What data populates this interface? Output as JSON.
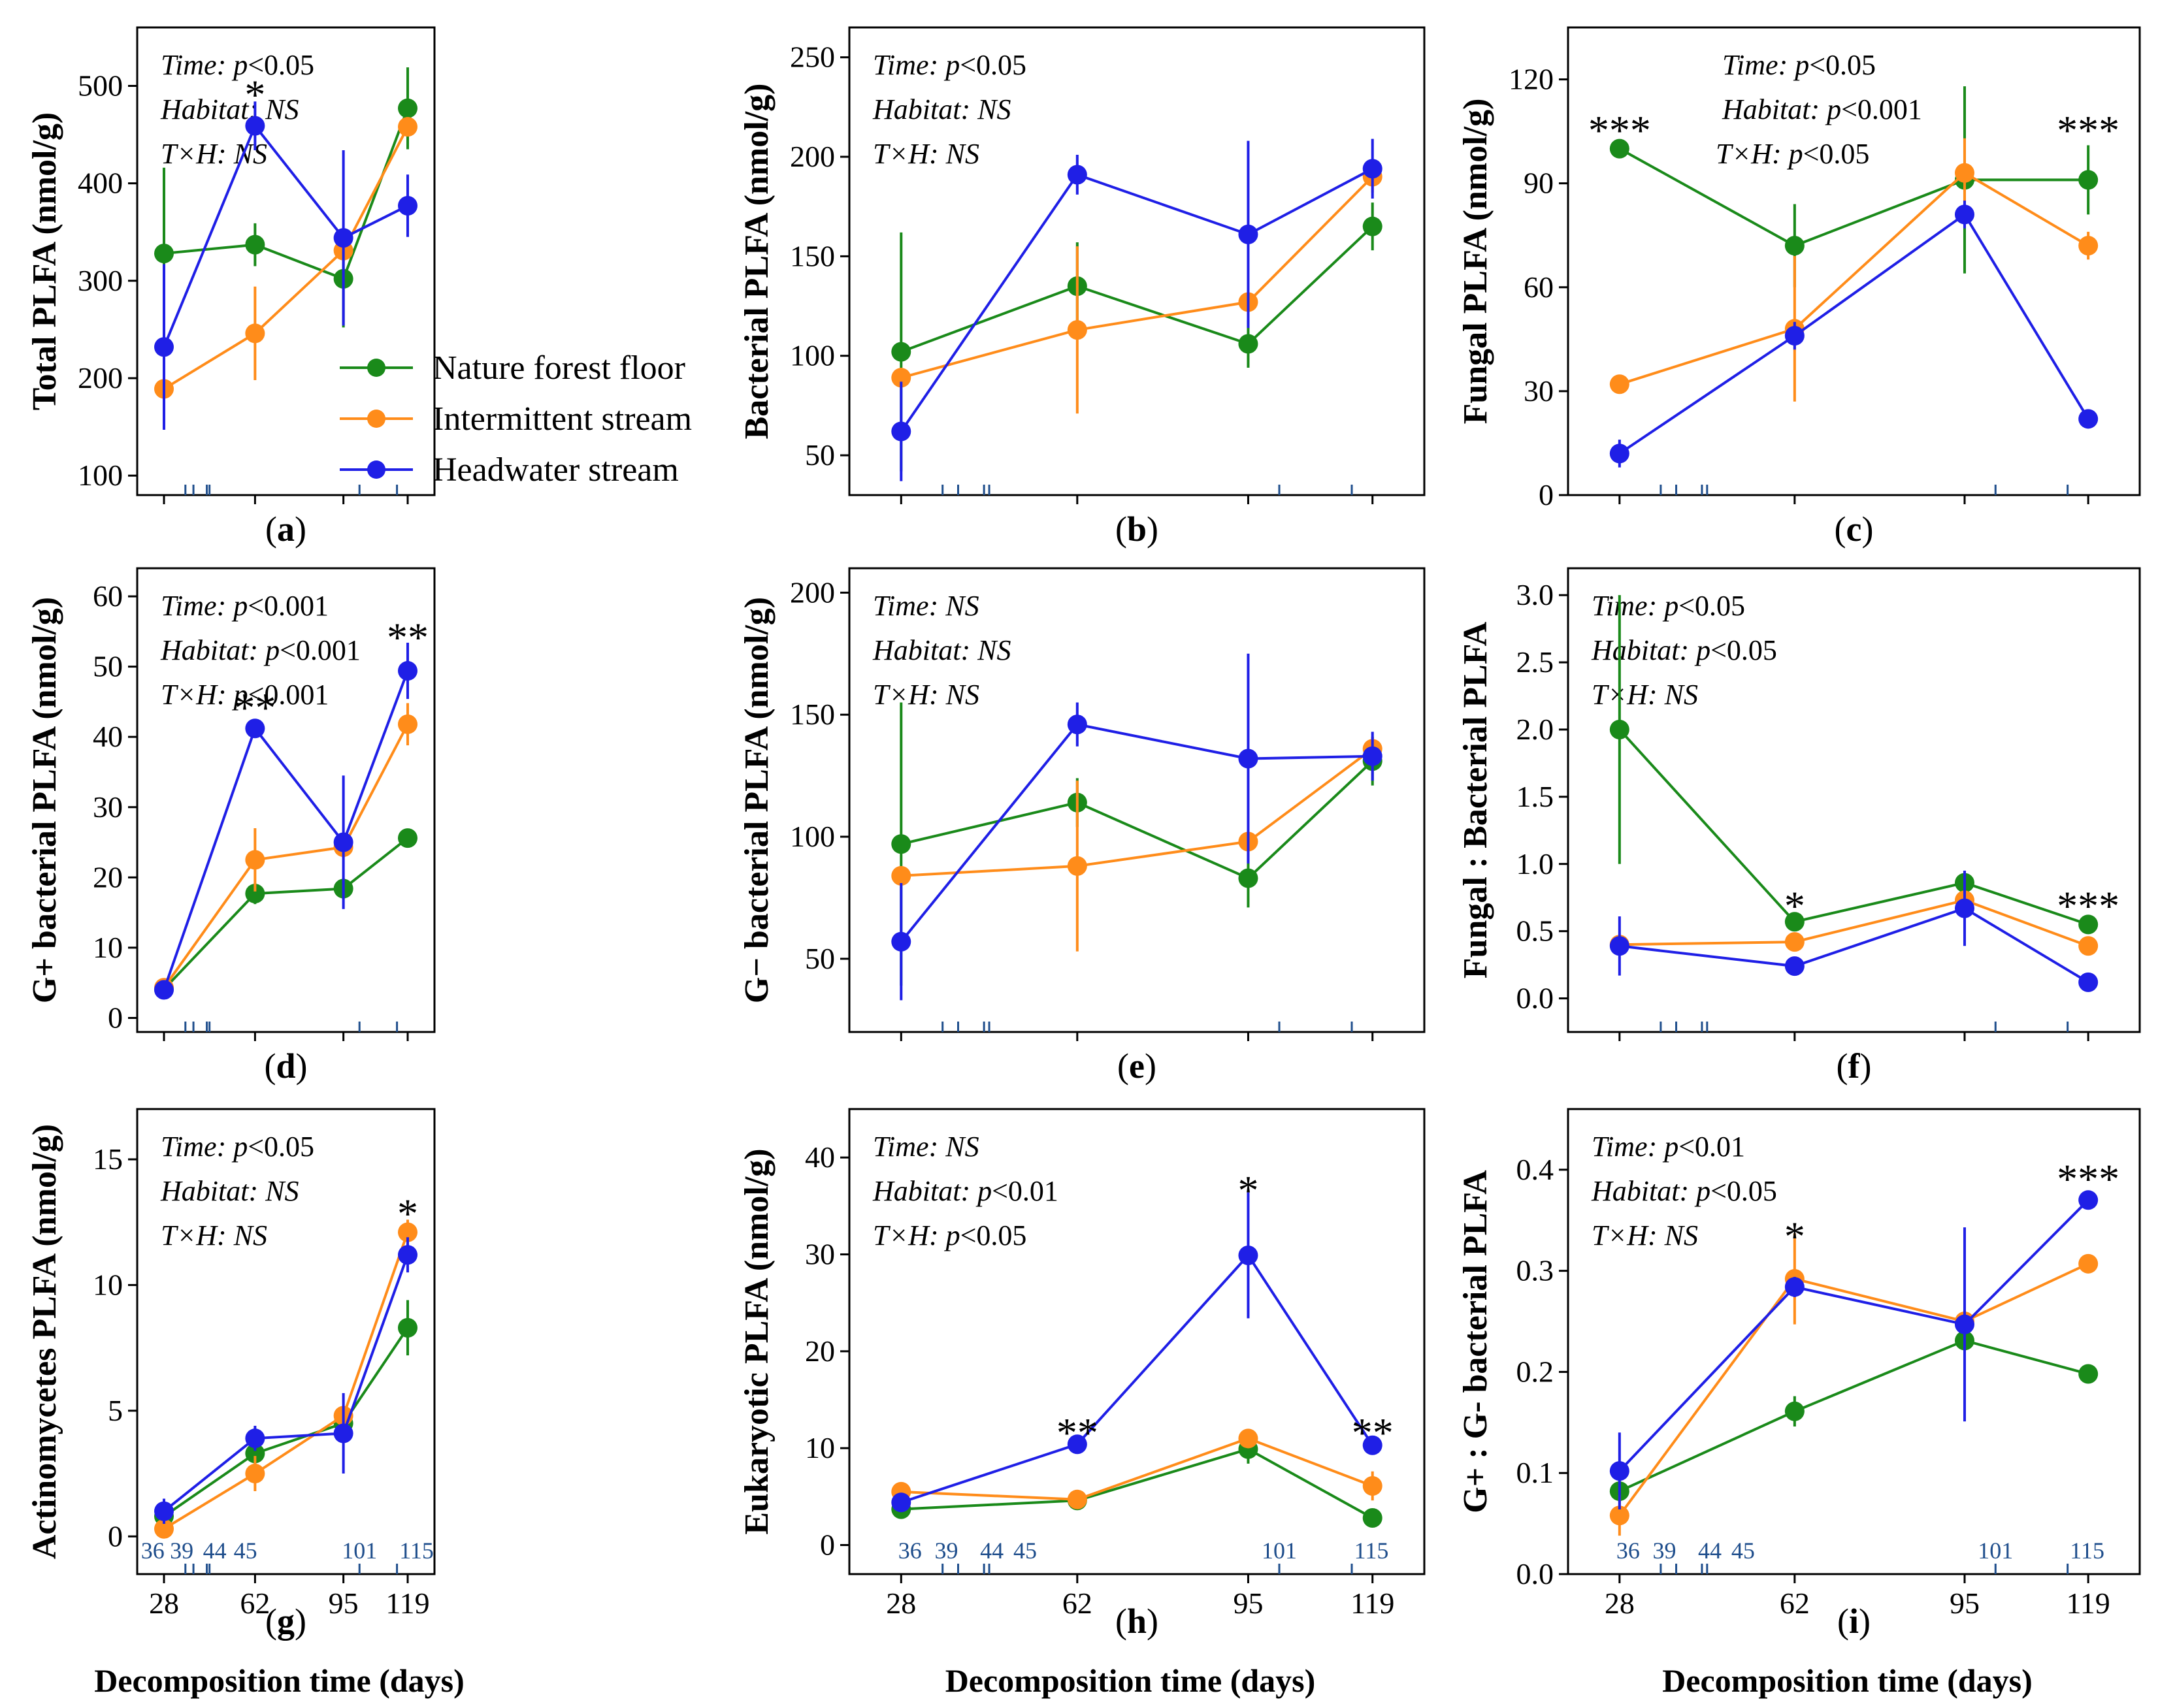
{
  "colors": {
    "Nature forest floor": "#1a8a1a",
    "Intermittent stream": "#ff8c1a",
    "Headwater stream": "#1f1fe6",
    "rug": "#1f4e8c"
  },
  "legend": [
    "Nature forest floor",
    "Intermittent stream",
    "Headwater stream"
  ],
  "common_xlabel": "Decomposition time (days)",
  "rug_days": [
    36,
    39,
    44,
    45,
    101,
    115
  ],
  "chart_data": [
    {
      "type": "line",
      "panel": "a",
      "ylabel": "Total PLFA (nmol/g)",
      "x": [
        28,
        62,
        95,
        119
      ],
      "ylim": [
        80,
        560
      ],
      "yticks": [
        100,
        200,
        300,
        400,
        500
      ],
      "stats": [
        {
          "key": "Time",
          "value": "p<0.05"
        },
        {
          "key": "Habitat",
          "value": "NS"
        },
        {
          "key": "T×H",
          "value": "NS"
        }
      ],
      "series": [
        {
          "name": "Nature forest floor",
          "values": [
            328,
            337,
            302,
            477
          ],
          "err": [
            88,
            22,
            50,
            42
          ]
        },
        {
          "name": "Intermittent stream",
          "values": [
            189,
            246,
            331,
            458
          ],
          "err": [
            12,
            48,
            12,
            10
          ]
        },
        {
          "name": "Headwater stream",
          "values": [
            232,
            459,
            344,
            377
          ],
          "err": [
            85,
            25,
            90,
            32
          ]
        }
      ],
      "sig": [
        {
          "x": 62,
          "text": "*",
          "value": 490
        }
      ],
      "show_xticks": false,
      "show_legend": true
    },
    {
      "type": "line",
      "panel": "b",
      "ylabel": "Bacterial PLFA (nmol/g)",
      "x": [
        28,
        62,
        95,
        119
      ],
      "ylim": [
        30,
        265
      ],
      "yticks": [
        50,
        100,
        150,
        200,
        250
      ],
      "stats": [
        {
          "key": "Time",
          "value": "p<0.05"
        },
        {
          "key": "Habitat",
          "value": "NS"
        },
        {
          "key": "T×H",
          "value": "NS"
        }
      ],
      "series": [
        {
          "name": "Nature forest floor",
          "values": [
            102,
            135,
            106,
            165
          ],
          "err": [
            60,
            22,
            12,
            12
          ]
        },
        {
          "name": "Intermittent stream",
          "values": [
            89,
            113,
            127,
            190
          ],
          "err": [
            5,
            42,
            5,
            8
          ]
        },
        {
          "name": "Headwater stream",
          "values": [
            62,
            191,
            161,
            194
          ],
          "err": [
            25,
            10,
            47,
            15
          ]
        }
      ],
      "sig": [],
      "show_xticks": false,
      "show_legend": false
    },
    {
      "type": "line",
      "panel": "c",
      "ylabel": "Fungal PLFA (nmol/g)",
      "x": [
        28,
        62,
        95,
        119
      ],
      "ylim": [
        0,
        135
      ],
      "yticks": [
        0,
        30,
        60,
        90,
        120
      ],
      "stats": [
        {
          "key": "Time",
          "value": "p<0.05"
        },
        {
          "key": "Habitat",
          "value": "p<0.001"
        },
        {
          "key": "T×H",
          "value": "p<0.05"
        }
      ],
      "series": [
        {
          "name": "Nature forest floor",
          "values": [
            100,
            72,
            91,
            91
          ],
          "err": [
            2,
            12,
            27,
            10
          ]
        },
        {
          "name": "Intermittent stream",
          "values": [
            32,
            48,
            93,
            72
          ],
          "err": [
            2,
            21,
            10,
            4
          ]
        },
        {
          "name": "Headwater stream",
          "values": [
            12,
            46,
            81,
            22
          ],
          "err": [
            4,
            4,
            4,
            2
          ]
        }
      ],
      "sig": [
        {
          "x": 28,
          "text": "***",
          "value": 105
        },
        {
          "x": 119,
          "text": "***",
          "value": 105
        }
      ],
      "show_xticks": false,
      "show_legend": false
    },
    {
      "type": "line",
      "panel": "d",
      "ylabel": "G+ bacterial PLFA (nmol/g)",
      "x": [
        28,
        62,
        95,
        119
      ],
      "ylim": [
        -2,
        64
      ],
      "yticks": [
        0,
        10,
        20,
        30,
        40,
        50,
        60
      ],
      "stats": [
        {
          "key": "Time",
          "value": "p<0.001"
        },
        {
          "key": "Habitat",
          "value": "p<0.001"
        },
        {
          "key": "T×H",
          "value": "p<0.001"
        }
      ],
      "series": [
        {
          "name": "Nature forest floor",
          "values": [
            4.1,
            17.7,
            18.4,
            25.6
          ],
          "err": [
            0.5,
            1.5,
            1.5,
            1.2
          ]
        },
        {
          "name": "Intermittent stream",
          "values": [
            4.3,
            22.5,
            24.3,
            41.8
          ],
          "err": [
            0.5,
            4.5,
            1.5,
            3
          ]
        },
        {
          "name": "Headwater stream",
          "values": [
            4.0,
            41.2,
            25.0,
            49.4
          ],
          "err": [
            0.5,
            0.8,
            9.5,
            4
          ]
        }
      ],
      "sig": [
        {
          "x": 62,
          "text": "**",
          "value": 44
        },
        {
          "x": 119,
          "text": "**",
          "value": 54
        }
      ],
      "show_xticks": false,
      "show_legend": false
    },
    {
      "type": "line",
      "panel": "e",
      "ylabel": "G− bacterial PLFA (nmol/g)",
      "x": [
        28,
        62,
        95,
        119
      ],
      "ylim": [
        20,
        210
      ],
      "yticks": [
        50,
        100,
        150,
        200
      ],
      "stats": [
        {
          "key": "Time",
          "value": "NS"
        },
        {
          "key": "Habitat",
          "value": "NS"
        },
        {
          "key": "T×H",
          "value": "NS"
        }
      ],
      "series": [
        {
          "name": "Nature forest floor",
          "values": [
            97,
            114,
            83,
            131
          ],
          "err": [
            58,
            10,
            12,
            10
          ]
        },
        {
          "name": "Intermittent stream",
          "values": [
            84,
            88,
            98,
            136
          ],
          "err": [
            3,
            35,
            3,
            5
          ]
        },
        {
          "name": "Headwater stream",
          "values": [
            57,
            146,
            132,
            133
          ],
          "err": [
            24,
            9,
            43,
            10
          ]
        }
      ],
      "sig": [],
      "show_xticks": false,
      "show_legend": false
    },
    {
      "type": "line",
      "panel": "f",
      "ylabel": "Fungal : Bacterial PLFA",
      "x": [
        28,
        62,
        95,
        119
      ],
      "ylim": [
        -0.25,
        3.2
      ],
      "yticks": [
        0.0,
        0.5,
        1.0,
        1.5,
        2.0,
        2.5,
        3.0
      ],
      "stats": [
        {
          "key": "Time",
          "value": "p<0.05"
        },
        {
          "key": "Habitat",
          "value": "p<0.05"
        },
        {
          "key": "T×H",
          "value": "NS"
        }
      ],
      "series": [
        {
          "name": "Nature forest floor",
          "values": [
            2.0,
            0.57,
            0.86,
            0.55
          ],
          "err": [
            1.0,
            0.06,
            0.06,
            0.04
          ]
        },
        {
          "name": "Intermittent stream",
          "values": [
            0.4,
            0.42,
            0.73,
            0.39
          ],
          "err": [
            0.03,
            0.04,
            0.05,
            0.03
          ]
        },
        {
          "name": "Headwater stream",
          "values": [
            0.39,
            0.24,
            0.67,
            0.12
          ],
          "err": [
            0.22,
            0.03,
            0.28,
            0.02
          ]
        }
      ],
      "sig": [
        {
          "x": 62,
          "text": "*",
          "value": 0.68
        },
        {
          "x": 119,
          "text": "***",
          "value": 0.68
        }
      ],
      "show_xticks": false,
      "show_legend": false
    },
    {
      "type": "line",
      "panel": "g",
      "ylabel": "Actinomycetes PLFA (nmol/g)",
      "x": [
        28,
        62,
        95,
        119
      ],
      "ylim": [
        -1.5,
        17
      ],
      "yticks": [
        0,
        5,
        10,
        15
      ],
      "stats": [
        {
          "key": "Time",
          "value": "p<0.05"
        },
        {
          "key": "Habitat",
          "value": "NS"
        },
        {
          "key": "T×H",
          "value": "NS"
        }
      ],
      "series": [
        {
          "name": "Nature forest floor",
          "values": [
            0.8,
            3.3,
            4.5,
            8.3
          ],
          "err": [
            0.3,
            0.5,
            0.5,
            1.1
          ]
        },
        {
          "name": "Intermittent stream",
          "values": [
            0.3,
            2.5,
            4.8,
            12.1
          ],
          "err": [
            0.2,
            0.7,
            0.3,
            0.5
          ]
        },
        {
          "name": "Headwater stream",
          "values": [
            1.0,
            3.9,
            4.1,
            11.2
          ],
          "err": [
            0.5,
            0.5,
            1.6,
            0.7
          ]
        }
      ],
      "sig": [
        {
          "x": 119,
          "text": "*",
          "value": 12.8
        }
      ],
      "show_xticks": true,
      "show_legend": false
    },
    {
      "type": "line",
      "panel": "h",
      "ylabel": "Eukaryotic PLFA (nmol/g)",
      "x": [
        28,
        62,
        95,
        119
      ],
      "ylim": [
        -3,
        45
      ],
      "yticks": [
        0,
        10,
        20,
        30,
        40
      ],
      "stats": [
        {
          "key": "Time",
          "value": "NS"
        },
        {
          "key": "Habitat",
          "value": "p<0.01"
        },
        {
          "key": "T×H",
          "value": "p<0.05"
        }
      ],
      "series": [
        {
          "name": "Nature forest floor",
          "values": [
            3.7,
            4.6,
            9.9,
            2.8
          ],
          "err": [
            0.4,
            0.4,
            1.5,
            0.5
          ]
        },
        {
          "name": "Intermittent stream",
          "values": [
            5.5,
            4.7,
            11.0,
            6.1
          ],
          "err": [
            0.5,
            0.4,
            1.0,
            1.5
          ]
        },
        {
          "name": "Headwater stream",
          "values": [
            4.4,
            10.4,
            29.9,
            10.3
          ],
          "err": [
            1.0,
            0.5,
            6.5,
            0.5
          ]
        }
      ],
      "sig": [
        {
          "x": 62,
          "text": "**",
          "value": 11.5
        },
        {
          "x": 95,
          "text": "*",
          "value": 36.5
        },
        {
          "x": 119,
          "text": "**",
          "value": 11.5
        }
      ],
      "show_xticks": true,
      "show_legend": false
    },
    {
      "type": "line",
      "panel": "i",
      "ylabel": "G+ : G- bacterial PLFA",
      "x": [
        28,
        62,
        95,
        119
      ],
      "ylim": [
        0,
        0.46
      ],
      "yticks": [
        0.0,
        0.1,
        0.2,
        0.3,
        0.4
      ],
      "stats": [
        {
          "key": "Time",
          "value": "p<0.01"
        },
        {
          "key": "Habitat",
          "value": "p<0.05"
        },
        {
          "key": "T×H",
          "value": "NS"
        }
      ],
      "series": [
        {
          "name": "Nature forest floor",
          "values": [
            0.082,
            0.161,
            0.231,
            0.198
          ],
          "err": [
            0.01,
            0.015,
            0.01,
            0.005
          ]
        },
        {
          "name": "Intermittent stream",
          "values": [
            0.058,
            0.292,
            0.25,
            0.307
          ],
          "err": [
            0.02,
            0.045,
            0.01,
            0.005
          ]
        },
        {
          "name": "Headwater stream",
          "values": [
            0.102,
            0.284,
            0.247,
            0.37
          ],
          "err": [
            0.038,
            0.01,
            0.096,
            0.005
          ]
        }
      ],
      "sig": [
        {
          "x": 62,
          "text": "*",
          "value": 0.333
        },
        {
          "x": 119,
          "text": "***",
          "value": 0.39
        }
      ],
      "show_xticks": true,
      "show_legend": false
    }
  ]
}
